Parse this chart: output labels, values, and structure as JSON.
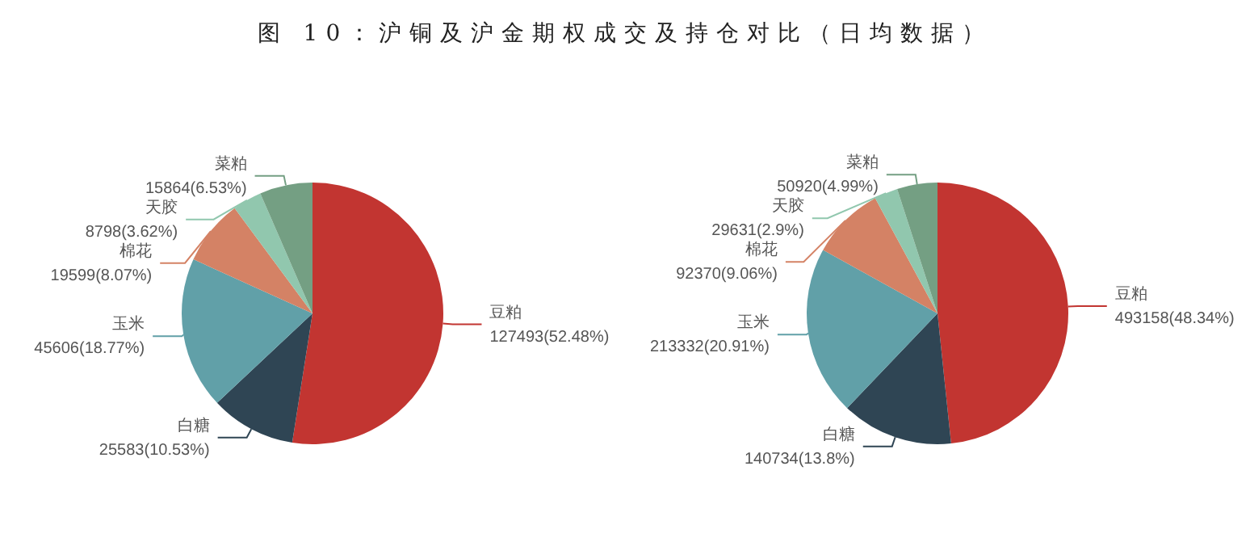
{
  "chart_data": [
    {
      "type": "pie",
      "title": "图 10：沪铜及沪金期权成交及持仓对比（日均数据）",
      "categories": [
        "豆粕",
        "白糖",
        "玉米",
        "棉花",
        "天胶",
        "菜粕"
      ],
      "values": [
        127493,
        25583,
        45606,
        19599,
        8798,
        15864
      ],
      "colors": [
        "#c23531",
        "#2f4554",
        "#61a0a8",
        "#d48265",
        "#91c7ae",
        "#749f83"
      ],
      "value_labels": [
        "127493(52.48%)",
        "25583(10.53%)",
        "45606(18.77%)",
        "19599(8.07%)",
        "8798(3.62%)",
        "15864(6.53%)"
      ],
      "legend": false
    },
    {
      "type": "pie",
      "categories": [
        "豆粕",
        "白糖",
        "玉米",
        "棉花",
        "天胶",
        "菜粕"
      ],
      "values": [
        493158,
        140734,
        213332,
        92370,
        29631,
        50920
      ],
      "colors": [
        "#c23531",
        "#2f4554",
        "#61a0a8",
        "#d48265",
        "#91c7ae",
        "#749f83"
      ],
      "value_labels": [
        "493158(48.34%)",
        "140734(13.8%)",
        "213332(20.91%)",
        "92370(9.06%)",
        "29631(2.9%)",
        "50920(4.99%)"
      ],
      "legend": false
    }
  ]
}
